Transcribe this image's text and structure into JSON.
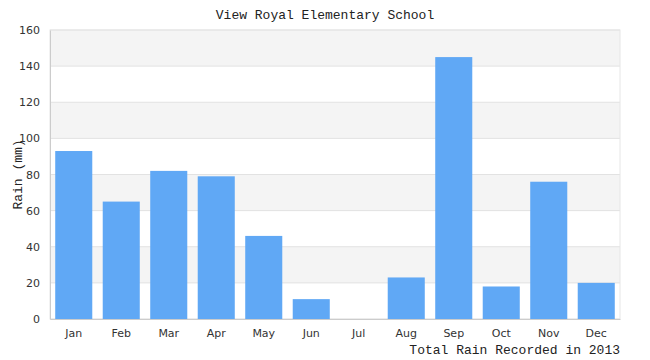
{
  "chart_data": {
    "type": "bar",
    "title": "View Royal Elementary School",
    "ylabel": "Rain (mm)",
    "xlabel": "Total Rain Recorded in 2013",
    "categories": [
      "Jan",
      "Feb",
      "Mar",
      "Apr",
      "May",
      "Jun",
      "Jul",
      "Aug",
      "Sep",
      "Oct",
      "Nov",
      "Dec"
    ],
    "values": [
      93,
      65,
      82,
      79,
      46,
      11,
      0,
      23,
      145,
      18,
      76,
      20
    ],
    "color": "#60a8f5",
    "ylim": [
      0,
      160
    ],
    "yticks": [
      0,
      20,
      40,
      60,
      80,
      100,
      120,
      140,
      160
    ],
    "grid": true
  }
}
